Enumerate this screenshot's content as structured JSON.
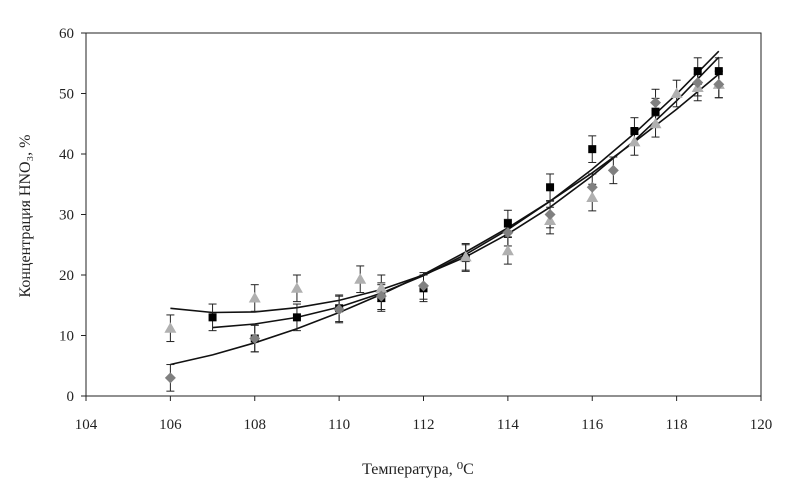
{
  "chart_data": {
    "type": "scatter",
    "title": "",
    "xlabel": "Температура, ⁰С",
    "ylabel": "Концентрация HNO₃, %",
    "xlim": [
      104,
      120
    ],
    "ylim": [
      0,
      60
    ],
    "xticks": [
      104,
      106,
      108,
      110,
      112,
      114,
      116,
      118,
      120
    ],
    "yticks": [
      0,
      10,
      20,
      30,
      40,
      50,
      60
    ],
    "grid": false,
    "legend": "none",
    "series": [
      {
        "marker": "square",
        "color": "#000000",
        "error_bars": true,
        "points": [
          {
            "x": 107,
            "y": 13
          },
          {
            "x": 108,
            "y": 9.5
          },
          {
            "x": 109,
            "y": 13
          },
          {
            "x": 110,
            "y": 14.5
          },
          {
            "x": 111,
            "y": 16.2
          },
          {
            "x": 112,
            "y": 17.8
          },
          {
            "x": 113,
            "y": 22.8
          },
          {
            "x": 114,
            "y": 28.5
          },
          {
            "x": 115,
            "y": 34.5
          },
          {
            "x": 116,
            "y": 40.8
          },
          {
            "x": 117,
            "y": 43.8
          },
          {
            "x": 117.5,
            "y": 47
          },
          {
            "x": 118.5,
            "y": 53.7
          },
          {
            "x": 119,
            "y": 53.7
          }
        ]
      },
      {
        "marker": "triangle",
        "color": "#b0b0b0",
        "error_bars": true,
        "points": [
          {
            "x": 106,
            "y": 11.2
          },
          {
            "x": 108,
            "y": 16.2
          },
          {
            "x": 109,
            "y": 17.8
          },
          {
            "x": 110.5,
            "y": 19.3
          },
          {
            "x": 111,
            "y": 17.8
          },
          {
            "x": 113,
            "y": 23
          },
          {
            "x": 114,
            "y": 24
          },
          {
            "x": 115,
            "y": 29
          },
          {
            "x": 116,
            "y": 32.8
          },
          {
            "x": 117,
            "y": 42
          },
          {
            "x": 117.5,
            "y": 45
          },
          {
            "x": 118,
            "y": 50
          },
          {
            "x": 118.5,
            "y": 51
          },
          {
            "x": 119,
            "y": 51.5
          }
        ]
      },
      {
        "marker": "diamond",
        "color": "#808080",
        "error_bars": true,
        "points": [
          {
            "x": 106,
            "y": 3
          },
          {
            "x": 108,
            "y": 9.5
          },
          {
            "x": 110,
            "y": 14.3
          },
          {
            "x": 111,
            "y": 16.5
          },
          {
            "x": 112,
            "y": 18.2
          },
          {
            "x": 114,
            "y": 27
          },
          {
            "x": 115,
            "y": 30
          },
          {
            "x": 116,
            "y": 34.5
          },
          {
            "x": 116.5,
            "y": 37.3
          },
          {
            "x": 117.5,
            "y": 48.5
          },
          {
            "x": 118.5,
            "y": 51.8
          },
          {
            "x": 119,
            "y": 51.5
          }
        ]
      }
    ],
    "trendlines": [
      {
        "from": 106,
        "to": 119,
        "points": [
          [
            106,
            14.5
          ],
          [
            107,
            13.8
          ],
          [
            108,
            13.9
          ],
          [
            109,
            14.6
          ],
          [
            110,
            15.8
          ],
          [
            111,
            17.6
          ],
          [
            112,
            20
          ],
          [
            113,
            23
          ],
          [
            114,
            26.8
          ],
          [
            115,
            31.2
          ],
          [
            116,
            36.4
          ],
          [
            117,
            42.2
          ],
          [
            118,
            48.8
          ],
          [
            119,
            56
          ]
        ]
      },
      {
        "from": 107,
        "to": 119,
        "points": [
          [
            107,
            11.3
          ],
          [
            108,
            11.9
          ],
          [
            109,
            13
          ],
          [
            110,
            14.7
          ],
          [
            111,
            17
          ],
          [
            112,
            19.9
          ],
          [
            113,
            23.4
          ],
          [
            114,
            27.5
          ],
          [
            115,
            32.2
          ],
          [
            116,
            37.5
          ],
          [
            117,
            43.4
          ],
          [
            118,
            49.9
          ],
          [
            119,
            57
          ]
        ]
      },
      {
        "from": 106,
        "to": 119,
        "points": [
          [
            106,
            5.2
          ],
          [
            107,
            6.8
          ],
          [
            108,
            8.8
          ],
          [
            109,
            11.1
          ],
          [
            110,
            13.8
          ],
          [
            111,
            16.8
          ],
          [
            112,
            20.1
          ],
          [
            113,
            23.8
          ],
          [
            114,
            27.8
          ],
          [
            115,
            32.2
          ],
          [
            116,
            36.9
          ],
          [
            117,
            42
          ],
          [
            118,
            47.4
          ],
          [
            119,
            53.2
          ]
        ]
      }
    ]
  }
}
